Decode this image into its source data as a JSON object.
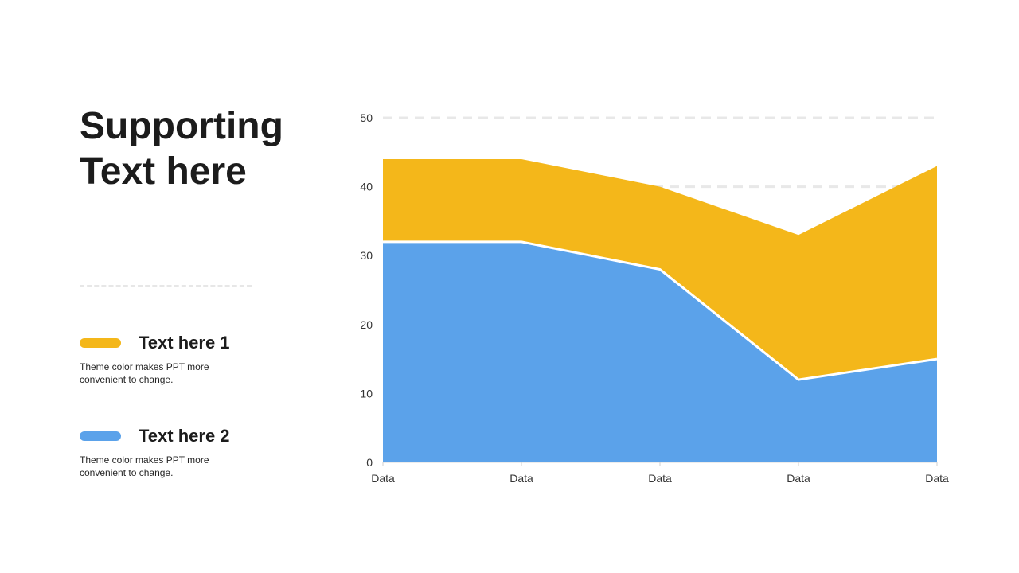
{
  "slide": {
    "title_line1": "Supporting",
    "title_line2": "Text here"
  },
  "legend": [
    {
      "title": "Text here 1",
      "description": "Theme color makes PPT more convenient to change.",
      "color": "#F4B71A"
    },
    {
      "title": "Text here 2",
      "description": "Theme color makes PPT more convenient to change.",
      "color": "#5BA2EA"
    }
  ],
  "chart_data": {
    "type": "area",
    "stacked": true,
    "categories": [
      "Data",
      "Data",
      "Data",
      "Data",
      "Data"
    ],
    "series": [
      {
        "name": "Text here 2",
        "values": [
          32,
          32,
          28,
          12,
          15
        ],
        "color": "#5BA2EA"
      },
      {
        "name": "Text here 1",
        "values": [
          12,
          12,
          12,
          21,
          28
        ],
        "color": "#F4B71A"
      }
    ],
    "ylim": [
      0,
      50
    ],
    "yticks": [
      0,
      10,
      20,
      30,
      40,
      50
    ],
    "grid": true
  }
}
